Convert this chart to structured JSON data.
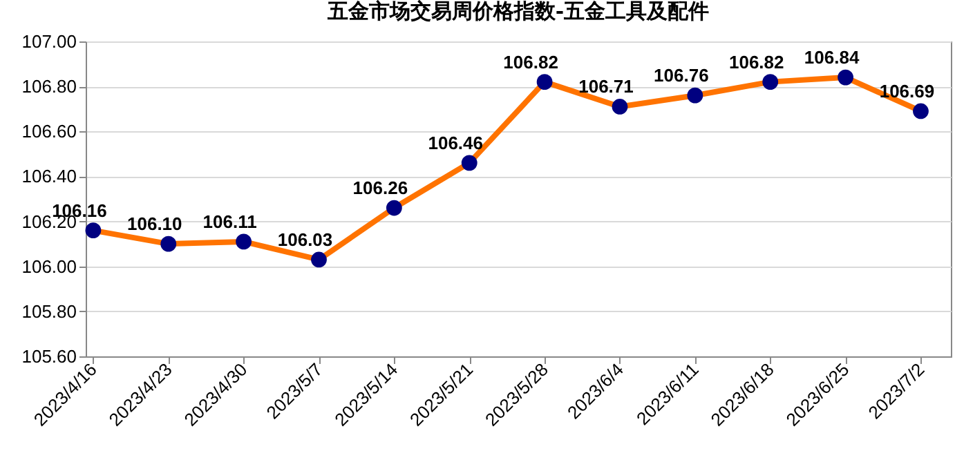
{
  "chart_data": {
    "type": "line",
    "title": "五金市场交易周价格指数-五金工具及配件",
    "categories": [
      "2023/4/16",
      "2023/4/23",
      "2023/4/30",
      "2023/5/7",
      "2023/5/14",
      "2023/5/21",
      "2023/5/28",
      "2023/6/4",
      "2023/6/11",
      "2023/6/18",
      "2023/6/25",
      "2023/7/2"
    ],
    "series": [
      {
        "color": "#ff7300",
        "values": [
          106.16,
          106.1,
          106.11,
          106.03,
          106.26,
          106.46,
          106.82,
          106.71,
          106.76,
          106.82,
          106.84,
          106.69
        ]
      }
    ],
    "ylim": [
      105.6,
      107.0
    ],
    "yticks": [
      {
        "value": 105.6,
        "label": "105.60"
      },
      {
        "value": 105.8,
        "label": "105.80"
      },
      {
        "value": 106.0,
        "label": "106.00"
      },
      {
        "value": 106.2,
        "label": "106.20"
      },
      {
        "value": 106.4,
        "label": "106.40"
      },
      {
        "value": 106.6,
        "label": "106.60"
      },
      {
        "value": 106.8,
        "label": "106.80"
      },
      {
        "value": 107.0,
        "label": "107.00"
      }
    ],
    "value_labels": [
      "106.16",
      "106.10",
      "106.11",
      "106.03",
      "106.26",
      "106.46",
      "106.82",
      "106.71",
      "106.76",
      "106.82",
      "106.84",
      "106.69"
    ],
    "grid": "y",
    "marker": "circle",
    "line_style": "solid"
  }
}
